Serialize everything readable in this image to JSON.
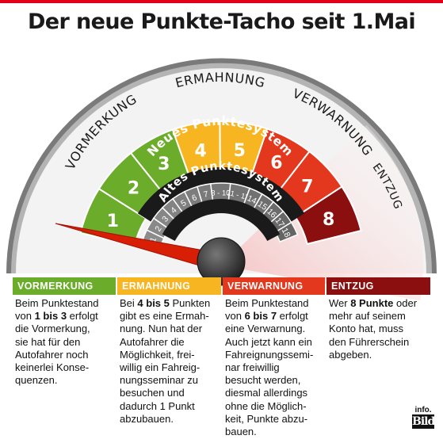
{
  "title": "Der neue Punkte-Tacho seit 1.Mai",
  "labels": {
    "vormerkung": "VORMERKUNG",
    "ermahnung": "ERMAHNUNG",
    "verwarnung": "VERWARNUNG",
    "entzug": "ENTZUG",
    "neues": "Neues Punktesystem",
    "altes": "Altes Punktesystem"
  },
  "new_segments": [
    {
      "label": "1",
      "color": "#6bad2b"
    },
    {
      "label": "2",
      "color": "#6bad2b"
    },
    {
      "label": "3",
      "color": "#6bad2b"
    },
    {
      "label": "4",
      "color": "#f7b521"
    },
    {
      "label": "5",
      "color": "#f7b521"
    },
    {
      "label": "6",
      "color": "#e3371e"
    },
    {
      "label": "7",
      "color": "#e3371e"
    },
    {
      "label": "8",
      "color": "#8b0f0f"
    }
  ],
  "old_segments": [
    "1",
    "2",
    "3",
    "4",
    "5",
    "6",
    "7",
    "8 - 10",
    "11 - 13",
    "14",
    "15",
    "16",
    "17",
    "18"
  ],
  "columns": [
    {
      "header": "VORMERKUNG",
      "color": "#6bad2b",
      "parts": [
        {
          "t": "Beim Punktestand\nvon "
        },
        {
          "t": "1 bis 3",
          "b": true
        },
        {
          "t": " erfolgt\ndie Vormerkung,\nsie hat für den\nAutofahrer noch\nkeinerlei Konse-\nquenzen."
        }
      ]
    },
    {
      "header": "ERMAHNUNG",
      "color": "#f7b521",
      "parts": [
        {
          "t": "Bei "
        },
        {
          "t": "4 bis 5",
          "b": true
        },
        {
          "t": " Punkten\ngibt es eine Ermah-\nnung. Nun hat der\nAutofahrer die\nMöglichkeit, frei-\nwillig ein Fahreig-\nnungsseminar zu\nbesuchen und\ndadurch 1 Punkt\nabzubauen."
        }
      ]
    },
    {
      "header": "VERWARNUNG",
      "color": "#e3371e",
      "parts": [
        {
          "t": "Beim Punktestand\nvon "
        },
        {
          "t": "6 bis 7",
          "b": true
        },
        {
          "t": " erfolgt\neine Verwarnung.\nAuch jetzt kann ein\nFahreignungssemi-\nnar freiwillig\nbesucht werden,\ndiesmal allerdings\nohne die Möglich-\nkeit, Punkte abzu-\nbauen."
        }
      ]
    },
    {
      "header": "ENTZUG",
      "color": "#8b0f0f",
      "parts": [
        {
          "t": "Wer "
        },
        {
          "t": "8 Punkte",
          "b": true
        },
        {
          "t": " oder\nmehr auf seinem\nKonto hat, muss\nden Führerschein\nabgeben."
        }
      ]
    }
  ],
  "logo": {
    "top": "info.",
    "brand": "Bild"
  }
}
